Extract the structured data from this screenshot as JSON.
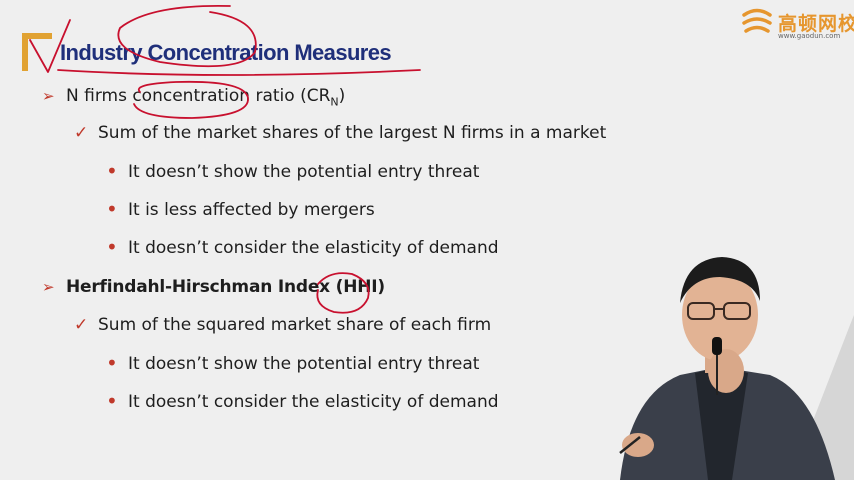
{
  "slide": {
    "title": "Industry Concentration Measures",
    "section1": {
      "label_prefix": "N firms concentration ratio (CR",
      "label_sub": "N",
      "label_suffix": ")",
      "check_item": "Sum of the market shares of the largest N firms in a market",
      "bullets": [
        "It doesn’t show the potential entry threat",
        "It is less affected by mergers",
        "It doesn’t consider the elasticity of demand"
      ]
    },
    "section2": {
      "label": "Herfindahl-Hirschman Index (HHI)",
      "check_item": "Sum of the squared market share of each firm",
      "bullets": [
        "It doesn’t show the potential entry threat",
        "It doesn’t consider the elasticity of demand"
      ]
    }
  },
  "logo": {
    "name": "高顿网校",
    "url": "www.gaodun.com",
    "icon": "gaodun-logo-icon",
    "color": "#e6962e"
  },
  "markers": {
    "level1": "➢",
    "level2": "✓",
    "level3": "•",
    "color": "#c0392b"
  },
  "colors": {
    "title": "#1f2f7a",
    "accent": "#e1a232",
    "annotation": "#c8102e",
    "background": "#efefef"
  }
}
